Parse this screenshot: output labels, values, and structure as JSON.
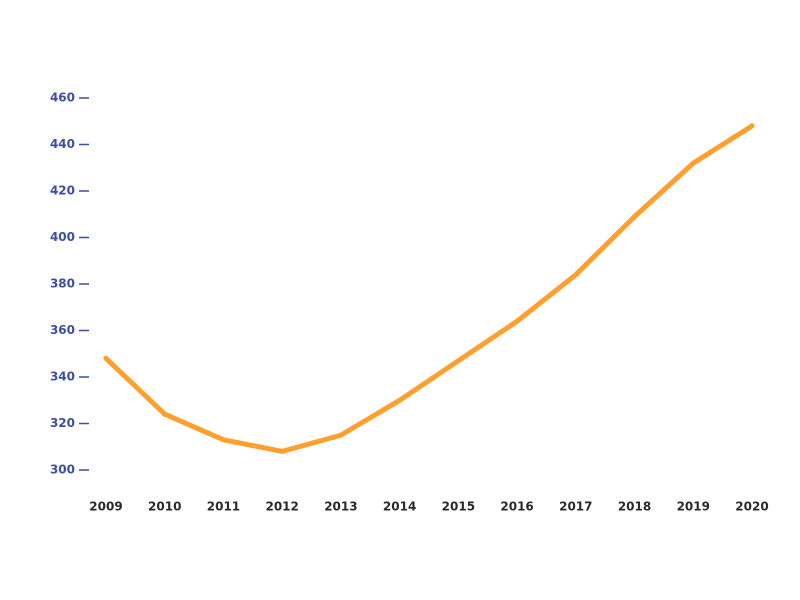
{
  "chart_data": {
    "type": "line",
    "categories": [
      "2009",
      "2010",
      "2011",
      "2012",
      "2013",
      "2014",
      "2015",
      "2016",
      "2017",
      "2018",
      "2019",
      "2020"
    ],
    "series": [
      {
        "values": [
          348,
          324,
          313,
          308,
          315,
          330,
          347,
          364,
          384,
          409,
          432,
          448
        ]
      }
    ],
    "y_ticks": [
      300,
      320,
      340,
      360,
      380,
      400,
      420,
      440,
      460
    ],
    "ylim": [
      300,
      460
    ],
    "grid": false,
    "legend": "none"
  },
  "colors": {
    "line": "#FF9F2E",
    "y_axis_text": "#3D4FA0",
    "x_axis_text": "#2A2A2A",
    "background": "#FFFFFF"
  }
}
